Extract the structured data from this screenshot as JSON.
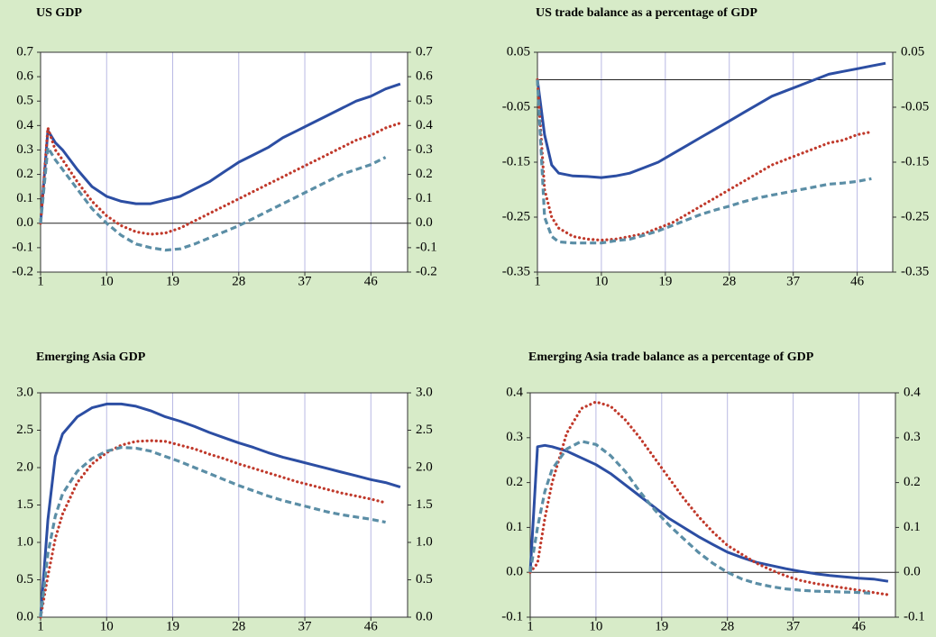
{
  "chart_data": [
    {
      "type": "line",
      "title": "US GDP",
      "mirror_y_axis": true,
      "zero_line": true,
      "grid": "x",
      "x": [
        1,
        2,
        3,
        4,
        6,
        8,
        10,
        12,
        14,
        16,
        18,
        20,
        22,
        24,
        26,
        28,
        30,
        32,
        34,
        36,
        38,
        40,
        42,
        44,
        46,
        48,
        50
      ],
      "xlim": [
        1,
        51
      ],
      "xticks": [
        1,
        10,
        19,
        28,
        37,
        46
      ],
      "ylim": [
        -0.2,
        0.7
      ],
      "yticks": [
        -0.2,
        -0.1,
        {
          "value": 0,
          "label": "0.0"
        },
        0.1,
        0.2,
        0.3,
        0.4,
        0.5,
        0.6,
        0.7
      ],
      "series": [
        {
          "color": "#2c4ea3",
          "style": "solid",
          "values": [
            0,
            0.38,
            0.33,
            0.3,
            0.22,
            0.15,
            0.11,
            0.09,
            0.08,
            0.08,
            0.095,
            0.11,
            0.14,
            0.17,
            0.21,
            0.25,
            0.28,
            0.31,
            0.35,
            0.38,
            0.41,
            0.44,
            0.47,
            0.5,
            0.52,
            0.55,
            0.57
          ]
        },
        {
          "color": "#c0392b",
          "style": "dotted",
          "values": [
            0,
            0.39,
            0.3,
            0.26,
            0.17,
            0.09,
            0.03,
            -0.01,
            -0.035,
            -0.045,
            -0.04,
            -0.02,
            0.01,
            0.04,
            0.07,
            0.1,
            0.13,
            0.16,
            0.19,
            0.22,
            0.25,
            0.28,
            0.31,
            0.34,
            0.36,
            0.39,
            0.41
          ]
        },
        {
          "color": "#5b8ea6",
          "style": "dashed",
          "values": [
            0,
            0.31,
            0.26,
            0.22,
            0.14,
            0.06,
            0.0,
            -0.05,
            -0.085,
            -0.1,
            -0.11,
            -0.105,
            -0.085,
            -0.06,
            -0.035,
            -0.01,
            0.02,
            0.05,
            0.08,
            0.11,
            0.14,
            0.17,
            0.2,
            0.22,
            0.24,
            0.27,
            null
          ]
        }
      ]
    },
    {
      "type": "line",
      "title": "US trade balance as a percentage of GDP",
      "mirror_y_axis": true,
      "zero_line": true,
      "grid": "x",
      "x": [
        1,
        2,
        3,
        4,
        6,
        8,
        10,
        12,
        14,
        16,
        18,
        20,
        22,
        24,
        26,
        28,
        30,
        32,
        34,
        36,
        38,
        40,
        42,
        44,
        46,
        48,
        50
      ],
      "xlim": [
        1,
        51
      ],
      "xticks": [
        1,
        10,
        19,
        28,
        37,
        46
      ],
      "ylim": [
        -0.35,
        0.05
      ],
      "yticks": [
        -0.35,
        -0.25,
        -0.15,
        -0.05,
        0.05
      ],
      "series": [
        {
          "color": "#2c4ea3",
          "style": "solid",
          "values": [
            0,
            -0.1,
            -0.155,
            -0.17,
            -0.175,
            -0.176,
            -0.178,
            -0.175,
            -0.17,
            -0.16,
            -0.15,
            -0.135,
            -0.12,
            -0.105,
            -0.09,
            -0.075,
            -0.06,
            -0.045,
            -0.03,
            -0.02,
            -0.01,
            0.0,
            0.01,
            0.015,
            0.02,
            0.025,
            0.03
          ]
        },
        {
          "color": "#c0392b",
          "style": "dotted",
          "values": [
            0,
            -0.2,
            -0.25,
            -0.27,
            -0.285,
            -0.29,
            -0.292,
            -0.29,
            -0.285,
            -0.28,
            -0.27,
            -0.26,
            -0.245,
            -0.23,
            -0.215,
            -0.2,
            -0.185,
            -0.17,
            -0.155,
            -0.145,
            -0.135,
            -0.125,
            -0.115,
            -0.11,
            -0.1,
            -0.095,
            null
          ]
        },
        {
          "color": "#5b8ea6",
          "style": "dashed",
          "values": [
            0,
            -0.25,
            -0.285,
            -0.295,
            -0.297,
            -0.297,
            -0.297,
            -0.293,
            -0.29,
            -0.283,
            -0.275,
            -0.265,
            -0.255,
            -0.245,
            -0.237,
            -0.23,
            -0.222,
            -0.215,
            -0.21,
            -0.205,
            -0.2,
            -0.195,
            -0.19,
            -0.188,
            -0.185,
            -0.18,
            null
          ]
        }
      ]
    },
    {
      "type": "line",
      "title": "Emerging Asia GDP",
      "mirror_y_axis": true,
      "zero_line": false,
      "grid": "x",
      "x": [
        1,
        2,
        3,
        4,
        6,
        8,
        10,
        12,
        14,
        16,
        18,
        20,
        22,
        24,
        26,
        28,
        30,
        32,
        34,
        36,
        38,
        40,
        42,
        44,
        46,
        48,
        50
      ],
      "xlim": [
        1,
        51
      ],
      "xticks": [
        1,
        10,
        19,
        28,
        37,
        46
      ],
      "ylim": [
        0,
        3
      ],
      "yticks": [
        {
          "value": 0,
          "label": "0.0"
        },
        0.5,
        {
          "value": 1,
          "label": "1.0"
        },
        1.5,
        {
          "value": 2,
          "label": "2.0"
        },
        2.5,
        {
          "value": 3,
          "label": "3.0"
        }
      ],
      "series": [
        {
          "color": "#2c4ea3",
          "style": "solid",
          "values": [
            0,
            1.3,
            2.15,
            2.45,
            2.68,
            2.8,
            2.85,
            2.85,
            2.82,
            2.76,
            2.68,
            2.62,
            2.55,
            2.47,
            2.4,
            2.33,
            2.27,
            2.2,
            2.14,
            2.09,
            2.04,
            1.99,
            1.94,
            1.89,
            1.84,
            1.8,
            1.74
          ]
        },
        {
          "color": "#c0392b",
          "style": "dotted",
          "values": [
            0,
            0.55,
            1.05,
            1.38,
            1.8,
            2.05,
            2.2,
            2.3,
            2.35,
            2.36,
            2.35,
            2.3,
            2.25,
            2.18,
            2.12,
            2.05,
            1.99,
            1.93,
            1.87,
            1.81,
            1.76,
            1.71,
            1.66,
            1.62,
            1.58,
            1.53,
            null
          ]
        },
        {
          "color": "#5b8ea6",
          "style": "dashed",
          "values": [
            0,
            0.85,
            1.35,
            1.65,
            1.95,
            2.12,
            2.22,
            2.27,
            2.26,
            2.22,
            2.15,
            2.08,
            2.0,
            1.92,
            1.84,
            1.76,
            1.69,
            1.62,
            1.56,
            1.51,
            1.46,
            1.41,
            1.37,
            1.34,
            1.31,
            1.27,
            null
          ]
        }
      ]
    },
    {
      "type": "line",
      "title": "Emerging Asia trade balance as a percentage of GDP",
      "mirror_y_axis": true,
      "zero_line": true,
      "grid": "x",
      "x": [
        1,
        2,
        3,
        4,
        6,
        8,
        10,
        12,
        14,
        16,
        18,
        20,
        22,
        24,
        26,
        28,
        30,
        32,
        34,
        36,
        38,
        40,
        42,
        44,
        46,
        48,
        50
      ],
      "xlim": [
        1,
        51
      ],
      "xticks": [
        1,
        10,
        19,
        28,
        37,
        46
      ],
      "ylim": [
        -0.1,
        0.4
      ],
      "yticks": [
        -0.1,
        {
          "value": 0,
          "label": "0.0"
        },
        0.1,
        0.2,
        0.3,
        0.4
      ],
      "series": [
        {
          "color": "#2c4ea3",
          "style": "solid",
          "values": [
            0,
            0.28,
            0.283,
            0.28,
            0.27,
            0.255,
            0.24,
            0.22,
            0.195,
            0.17,
            0.145,
            0.12,
            0.1,
            0.08,
            0.062,
            0.045,
            0.033,
            0.022,
            0.015,
            0.008,
            0.002,
            -0.003,
            -0.007,
            -0.01,
            -0.013,
            -0.015,
            -0.02
          ]
        },
        {
          "color": "#c0392b",
          "style": "dotted",
          "values": [
            0,
            0.02,
            0.12,
            0.2,
            0.31,
            0.365,
            0.38,
            0.37,
            0.34,
            0.3,
            0.255,
            0.21,
            0.165,
            0.125,
            0.09,
            0.06,
            0.04,
            0.02,
            0.005,
            -0.008,
            -0.018,
            -0.025,
            -0.03,
            -0.035,
            -0.04,
            -0.045,
            -0.05
          ]
        },
        {
          "color": "#5b8ea6",
          "style": "dashed",
          "values": [
            0,
            0.1,
            0.18,
            0.23,
            0.275,
            0.292,
            0.285,
            0.26,
            0.225,
            0.18,
            0.14,
            0.105,
            0.075,
            0.045,
            0.02,
            0.0,
            -0.015,
            -0.025,
            -0.032,
            -0.037,
            -0.04,
            -0.042,
            -0.043,
            -0.044,
            -0.045,
            -0.047,
            null
          ]
        }
      ]
    }
  ]
}
